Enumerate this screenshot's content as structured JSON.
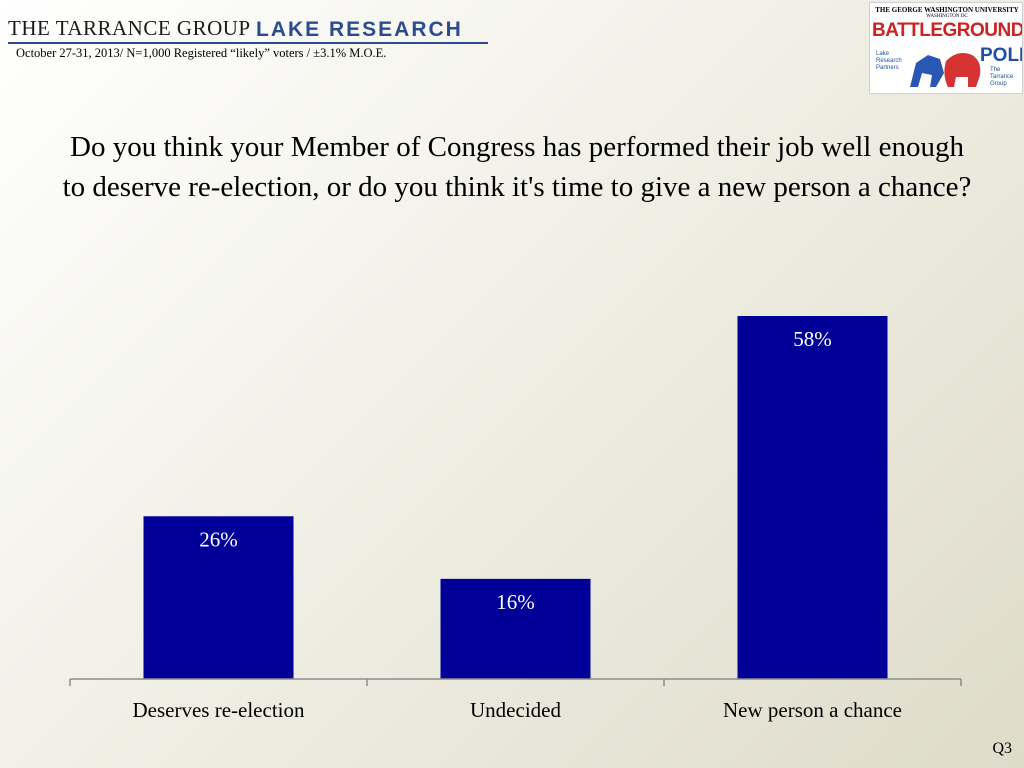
{
  "header": {
    "logo_left_primary": "THE TARRANCE GROUP",
    "logo_left_secondary": "LAKE  RESEARCH",
    "subtitle": "October 27-31, 2013/ N=1,000 Registered “likely” voters / ±3.1% M.O.E."
  },
  "poll_logo": {
    "university": "THE GEORGE WASHINGTON UNIVERSITY",
    "location": "WASHINGTON DC",
    "line1": "BATTLEGROUND",
    "line2": "POLL",
    "left_caption": "Lake Research Partners",
    "right_caption": "The Tarrance Group"
  },
  "chart_data": {
    "type": "bar",
    "title": "Do you think your Member of Congress has performed their job well enough to deserve re-election, or do you think it's time to give a new person a chance?",
    "categories": [
      "Deserves re-election",
      "Undecided",
      "New person a chance"
    ],
    "values": [
      26,
      16,
      58
    ],
    "data_labels": [
      "26%",
      "16%",
      "58%"
    ],
    "ylim": [
      0,
      58
    ],
    "bar_color": "#000099",
    "grid": false
  },
  "footer": {
    "page_code": "Q3"
  }
}
